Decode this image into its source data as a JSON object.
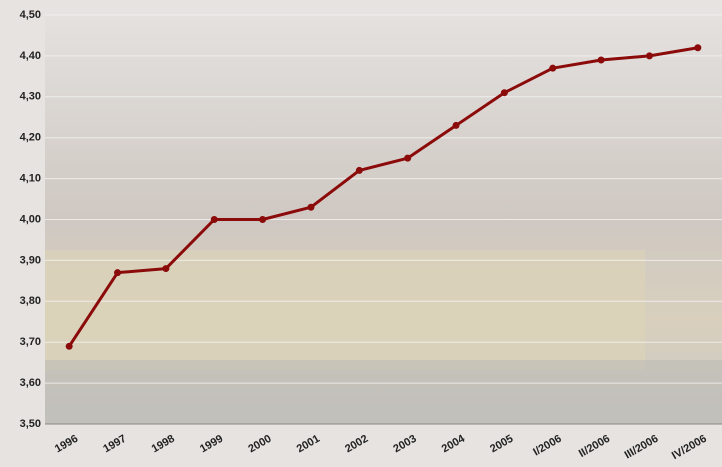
{
  "chart_data": {
    "type": "line",
    "categories": [
      "1996",
      "1997",
      "1998",
      "1999",
      "2000",
      "2001",
      "2002",
      "2003",
      "2004",
      "2005",
      "I/2006",
      "II/2006",
      "III/2006",
      "IV/2006"
    ],
    "series": [
      {
        "color": "#8b0a0a",
        "values": [
          3.69,
          3.87,
          3.88,
          4.0,
          4.0,
          4.03,
          4.12,
          4.15,
          4.23,
          4.31,
          4.37,
          4.39,
          4.4,
          4.42
        ]
      }
    ],
    "ylim": [
      3.5,
      4.5
    ],
    "yticks": [
      {
        "value": 3.5,
        "label": "3,50"
      },
      {
        "value": 3.6,
        "label": "3,60"
      },
      {
        "value": 3.7,
        "label": "3,70"
      },
      {
        "value": 3.8,
        "label": "3,80"
      },
      {
        "value": 3.9,
        "label": "3,90"
      },
      {
        "value": 4.0,
        "label": "4,00"
      },
      {
        "value": 4.1,
        "label": "4,10"
      },
      {
        "value": 4.2,
        "label": "4,20"
      },
      {
        "value": 4.3,
        "label": "4,30"
      },
      {
        "value": 4.4,
        "label": "4,40"
      },
      {
        "value": 4.5,
        "label": "4,50"
      }
    ],
    "grid": true
  }
}
